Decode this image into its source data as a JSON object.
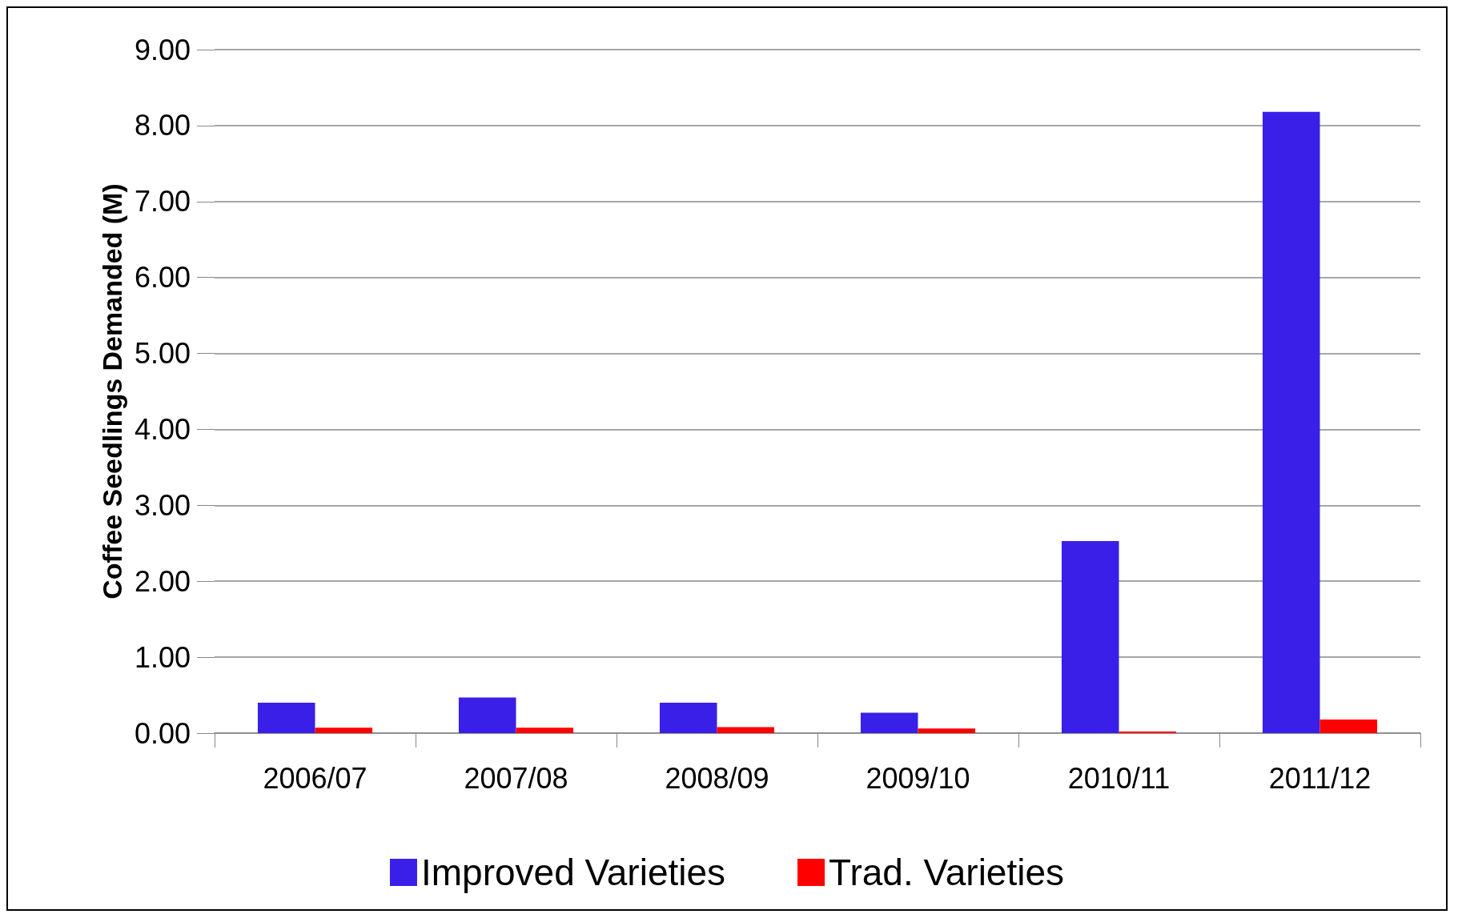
{
  "chart_data": {
    "type": "bar",
    "ylabel": "Coffee Seedlings Demanded (M)",
    "categories": [
      "2006/07",
      "2007/08",
      "2008/09",
      "2009/10",
      "2010/11",
      "2011/12"
    ],
    "series": [
      {
        "name": "Improved Varieties",
        "color": "#3a1fe8",
        "values": [
          0.4,
          0.47,
          0.4,
          0.27,
          2.53,
          8.18
        ]
      },
      {
        "name": "Trad. Varieties",
        "color": "#ff0000",
        "values": [
          0.07,
          0.07,
          0.08,
          0.06,
          0.02,
          0.18
        ]
      }
    ],
    "ylim": [
      0,
      9
    ],
    "yticks": [
      {
        "value": 0,
        "label": "0.00"
      },
      {
        "value": 1,
        "label": "1.00"
      },
      {
        "value": 2,
        "label": "2.00"
      },
      {
        "value": 3,
        "label": "3.00"
      },
      {
        "value": 4,
        "label": "4.00"
      },
      {
        "value": 5,
        "label": "5.00"
      },
      {
        "value": 6,
        "label": "6.00"
      },
      {
        "value": 7,
        "label": "7.00"
      },
      {
        "value": 8,
        "label": "8.00"
      },
      {
        "value": 9,
        "label": "9.00"
      }
    ],
    "grid": "y",
    "legend": "bottom"
  }
}
